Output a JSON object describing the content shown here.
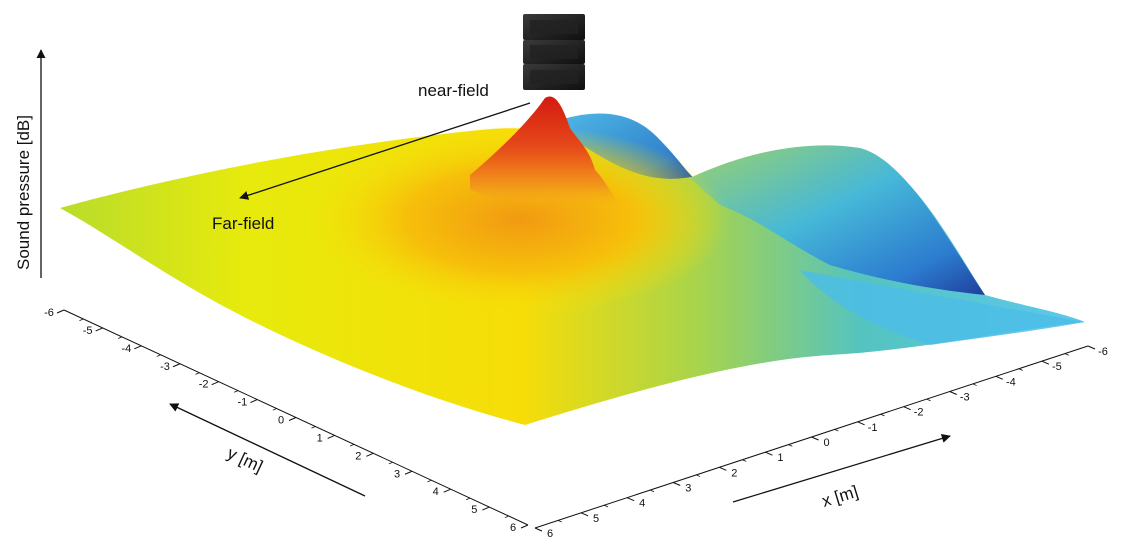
{
  "chart_data": {
    "type": "surface",
    "zlabel": "Sound pressure [dB]",
    "xlabel": "x [m]",
    "ylabel": "y [m]",
    "x_ticks": [
      6,
      5,
      4,
      3,
      2,
      1,
      0,
      -1,
      -2,
      -3,
      -4,
      -5,
      -6
    ],
    "y_ticks": [
      -6,
      -5,
      -4,
      -3,
      -2,
      -1,
      0,
      1,
      2,
      3,
      4,
      5,
      6
    ],
    "xlim": [
      -6,
      6
    ],
    "ylim": [
      -6,
      6
    ],
    "annotations": {
      "near": "near-field",
      "far": "Far-field"
    },
    "colormap": [
      "#1f4fa3",
      "#3bb2e8",
      "#67c9a8",
      "#c9e02a",
      "#f5e800",
      "#f5a50f",
      "#d62410"
    ],
    "grid": false,
    "legend": "none"
  }
}
